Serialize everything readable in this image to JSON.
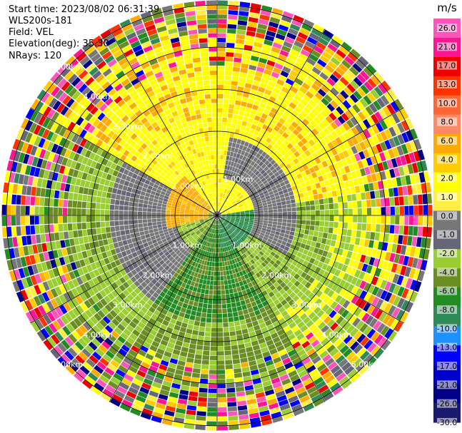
{
  "header": {
    "start_time": "Start time: 2023/08/02 06:31:39",
    "instrument": "WLS200s-181",
    "field": "Field: VEL",
    "elevation": "Elevation(deg): 35.30",
    "nrays": "NRays: 120"
  },
  "colorbar": {
    "unit": "m/s",
    "ticks": [
      "26.0",
      "21.0",
      "17.0",
      "13.0",
      "10.0",
      "8.0",
      "6.0",
      "4.0",
      "2.0",
      "1.0",
      "0.0",
      "-1.0",
      "-2.0",
      "-4.0",
      "-6.0",
      "-8.0",
      "-10.0",
      "-13.0",
      "-17.0",
      "-21.0",
      "-26.0",
      "-30.0"
    ],
    "colors": [
      "#ff55bb",
      "#ff1493",
      "#ee0000",
      "#ff3300",
      "#ff6633",
      "#ff8866",
      "#ffaa00",
      "#ffcc00",
      "#ffff00",
      "#ffee44",
      "#777777",
      "#666677",
      "#9acd32",
      "#6b8e23",
      "#228b22",
      "#2e8b57",
      "#1e90ff",
      "#0000ff",
      "#0000cd",
      "#000088",
      "#1a1a6e"
    ]
  },
  "range_rings": {
    "labels": [
      "1.00km",
      "2.00km",
      "3.00km",
      "4.00km",
      "5.00km"
    ]
  }
}
